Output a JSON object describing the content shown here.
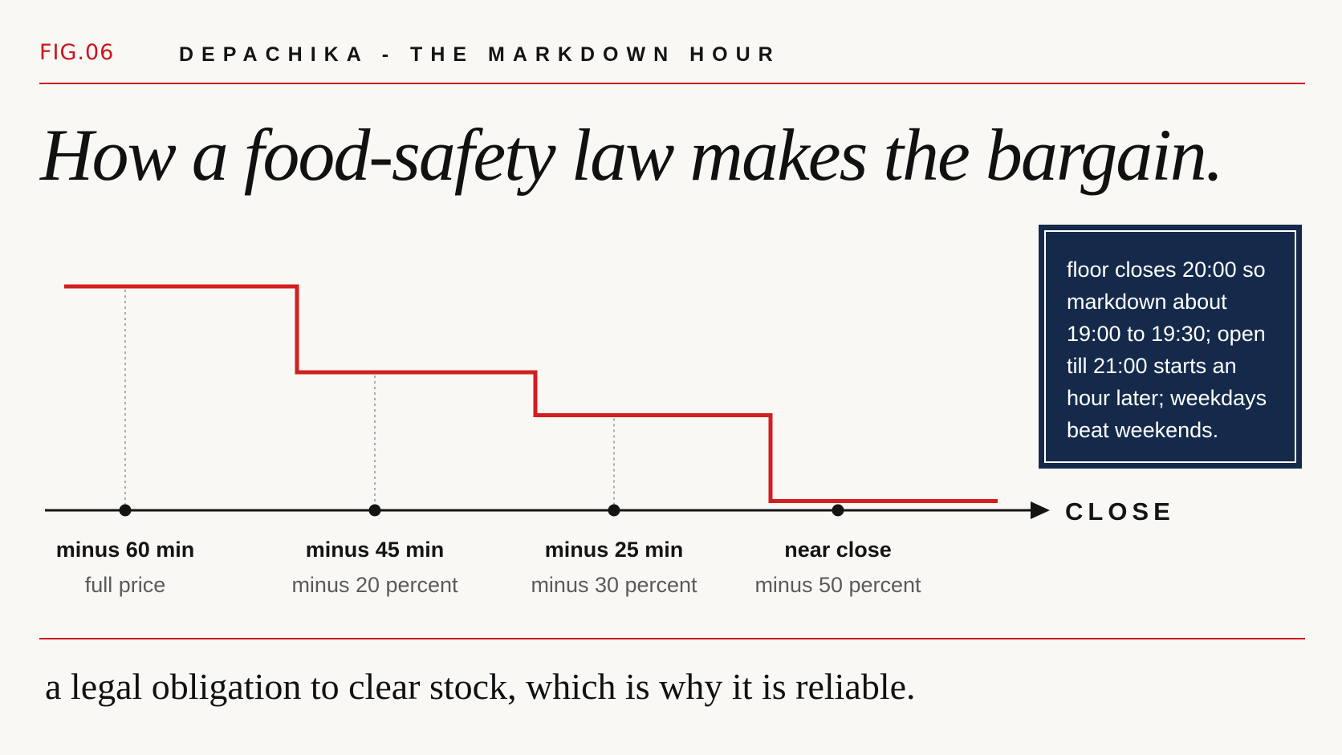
{
  "header": {
    "fig_label": "FIG.06",
    "kicker": "DEPACHIKA - THE MARKDOWN HOUR"
  },
  "headline": "How a food-safety law makes the bargain.",
  "note": "floor closes 20:00 so markdown about 19:00 to 19:30; open till 21:00 starts an hour later; weekdays beat weekends.",
  "caption": "a legal obligation to clear stock, which is why it is reliable.",
  "chart_data": {
    "type": "line",
    "step": true,
    "title": "How a food-safety law makes the bargain.",
    "x_axis_end_label": "CLOSE",
    "categories": [
      "minus 60 min",
      "minus 45 min",
      "minus 25 min",
      "near close"
    ],
    "category_notes": [
      "full price",
      "minus 20 percent",
      "minus 30 percent",
      "minus 50 percent"
    ],
    "series": [
      {
        "values": [
          100,
          80,
          70,
          50
        ]
      }
    ],
    "ylim": [
      0,
      100
    ],
    "grid": false,
    "colors": {
      "line": "#d21f1f",
      "axis": "#141414",
      "guide": "#9a9a9a"
    }
  }
}
